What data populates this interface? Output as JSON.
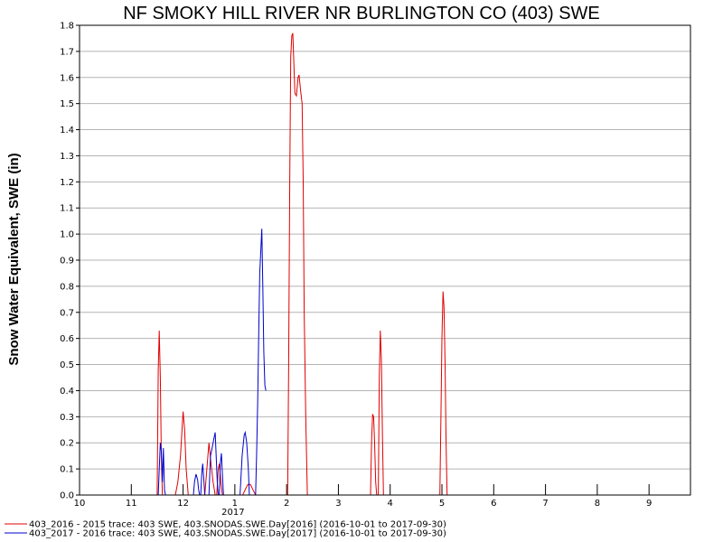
{
  "chart_data": {
    "type": "line",
    "title": "NF SMOKY HILL RIVER NR BURLINGTON CO (403) SWE",
    "ylabel": "Snow Water Equivalent, SWE (in)",
    "xlabel": "",
    "ylim": [
      0,
      1.8
    ],
    "yticks": [
      "0.0",
      "0.1",
      "0.2",
      "0.3",
      "0.4",
      "0.5",
      "0.6",
      "0.7",
      "0.8",
      "0.9",
      "1.0",
      "1.1",
      "1.2",
      "1.3",
      "1.4",
      "1.5",
      "1.6",
      "1.7",
      "1.8"
    ],
    "xlim": [
      10,
      21.8
    ],
    "xticks": [
      {
        "x": 10,
        "label": "10"
      },
      {
        "x": 11,
        "label": "11"
      },
      {
        "x": 12,
        "label": "12"
      },
      {
        "x": 13,
        "label": "1"
      },
      {
        "x": 14,
        "label": "2"
      },
      {
        "x": 15,
        "label": "3"
      },
      {
        "x": 16,
        "label": "4"
      },
      {
        "x": 17,
        "label": "5"
      },
      {
        "x": 18,
        "label": "6"
      },
      {
        "x": 19,
        "label": "7"
      },
      {
        "x": 20,
        "label": "8"
      },
      {
        "x": 21,
        "label": "9"
      }
    ],
    "year_label": {
      "x": 13,
      "label": "2017"
    },
    "grid": true,
    "legend_position": "bottom-left",
    "series": [
      {
        "name": "403_2016 - 2015 trace: 403 SWE, 403.SNODAS.SWE.Day[2016] (2016-10-01 to 2017-09-30)",
        "color": "#e00000",
        "points": [
          [
            11.5,
            0
          ],
          [
            11.52,
            0.48
          ],
          [
            11.54,
            0.63
          ],
          [
            11.56,
            0.45
          ],
          [
            11.58,
            0.15
          ],
          [
            11.6,
            0
          ],
          [
            11.85,
            0
          ],
          [
            11.9,
            0.05
          ],
          [
            11.95,
            0.15
          ],
          [
            11.98,
            0.25
          ],
          [
            12.0,
            0.32
          ],
          [
            12.03,
            0.25
          ],
          [
            12.06,
            0.1
          ],
          [
            12.1,
            0
          ],
          [
            12.42,
            0
          ],
          [
            12.46,
            0.1
          ],
          [
            12.5,
            0.2
          ],
          [
            12.54,
            0.12
          ],
          [
            12.58,
            0.05
          ],
          [
            12.62,
            0
          ],
          [
            12.65,
            0
          ],
          [
            12.68,
            0.1
          ],
          [
            12.7,
            0.12
          ],
          [
            12.73,
            0.05
          ],
          [
            12.76,
            0
          ],
          [
            13.15,
            0
          ],
          [
            13.2,
            0.02
          ],
          [
            13.25,
            0.04
          ],
          [
            13.3,
            0.04
          ],
          [
            13.35,
            0.02
          ],
          [
            13.4,
            0
          ],
          [
            14.02,
            0
          ],
          [
            14.04,
            0.5
          ],
          [
            14.06,
            1.2
          ],
          [
            14.08,
            1.68
          ],
          [
            14.1,
            1.76
          ],
          [
            14.12,
            1.77
          ],
          [
            14.14,
            1.65
          ],
          [
            14.16,
            1.54
          ],
          [
            14.19,
            1.53
          ],
          [
            14.22,
            1.6
          ],
          [
            14.24,
            1.61
          ],
          [
            14.27,
            1.55
          ],
          [
            14.3,
            1.5
          ],
          [
            14.32,
            1.2
          ],
          [
            14.34,
            0.7
          ],
          [
            14.37,
            0.3
          ],
          [
            14.4,
            0
          ],
          [
            15.62,
            0
          ],
          [
            15.64,
            0.2
          ],
          [
            15.66,
            0.31
          ],
          [
            15.68,
            0.3
          ],
          [
            15.7,
            0.2
          ],
          [
            15.72,
            0.05
          ],
          [
            15.74,
            0
          ],
          [
            15.77,
            0
          ],
          [
            15.79,
            0.45
          ],
          [
            15.81,
            0.63
          ],
          [
            15.83,
            0.52
          ],
          [
            15.85,
            0.25
          ],
          [
            15.87,
            0
          ],
          [
            16.96,
            0
          ],
          [
            16.98,
            0.3
          ],
          [
            17.0,
            0.6
          ],
          [
            17.02,
            0.78
          ],
          [
            17.04,
            0.72
          ],
          [
            17.06,
            0.5
          ],
          [
            17.08,
            0.2
          ],
          [
            17.1,
            0
          ]
        ]
      },
      {
        "name": "403_2017 - 2016 trace: 403 SWE, 403.SNODAS.SWE.Day[2017] (2016-10-01 to 2017-09-30)",
        "color": "#0000cc",
        "points": [
          [
            11.52,
            0
          ],
          [
            11.54,
            0.1
          ],
          [
            11.56,
            0.2
          ],
          [
            11.58,
            0.17
          ],
          [
            11.6,
            0.05
          ],
          [
            11.62,
            0.18
          ],
          [
            11.64,
            0.02
          ],
          [
            11.66,
            0
          ],
          [
            12.2,
            0
          ],
          [
            12.22,
            0.05
          ],
          [
            12.25,
            0.08
          ],
          [
            12.28,
            0.06
          ],
          [
            12.3,
            0.02
          ],
          [
            12.32,
            0
          ],
          [
            12.34,
            0
          ],
          [
            12.36,
            0.08
          ],
          [
            12.38,
            0.12
          ],
          [
            12.4,
            0.06
          ],
          [
            12.42,
            0
          ],
          [
            12.5,
            0
          ],
          [
            12.53,
            0.15
          ],
          [
            12.56,
            0.18
          ],
          [
            12.58,
            0.2
          ],
          [
            12.6,
            0.22
          ],
          [
            12.62,
            0.24
          ],
          [
            12.64,
            0.15
          ],
          [
            12.66,
            0.05
          ],
          [
            12.68,
            0
          ],
          [
            12.7,
            0
          ],
          [
            12.72,
            0.12
          ],
          [
            12.74,
            0.16
          ],
          [
            12.76,
            0.08
          ],
          [
            12.78,
            0
          ],
          [
            13.1,
            0
          ],
          [
            13.14,
            0.15
          ],
          [
            13.18,
            0.23
          ],
          [
            13.2,
            0.24
          ],
          [
            13.23,
            0.2
          ],
          [
            13.26,
            0.1
          ],
          [
            13.28,
            0
          ],
          [
            13.4,
            0
          ],
          [
            13.42,
            0.15
          ],
          [
            13.44,
            0.35
          ],
          [
            13.46,
            0.6
          ],
          [
            13.48,
            0.85
          ],
          [
            13.5,
            0.93
          ],
          [
            13.52,
            1.02
          ],
          [
            13.54,
            0.8
          ],
          [
            13.56,
            0.55
          ],
          [
            13.58,
            0.42
          ],
          [
            13.6,
            0.4
          ]
        ]
      }
    ]
  }
}
